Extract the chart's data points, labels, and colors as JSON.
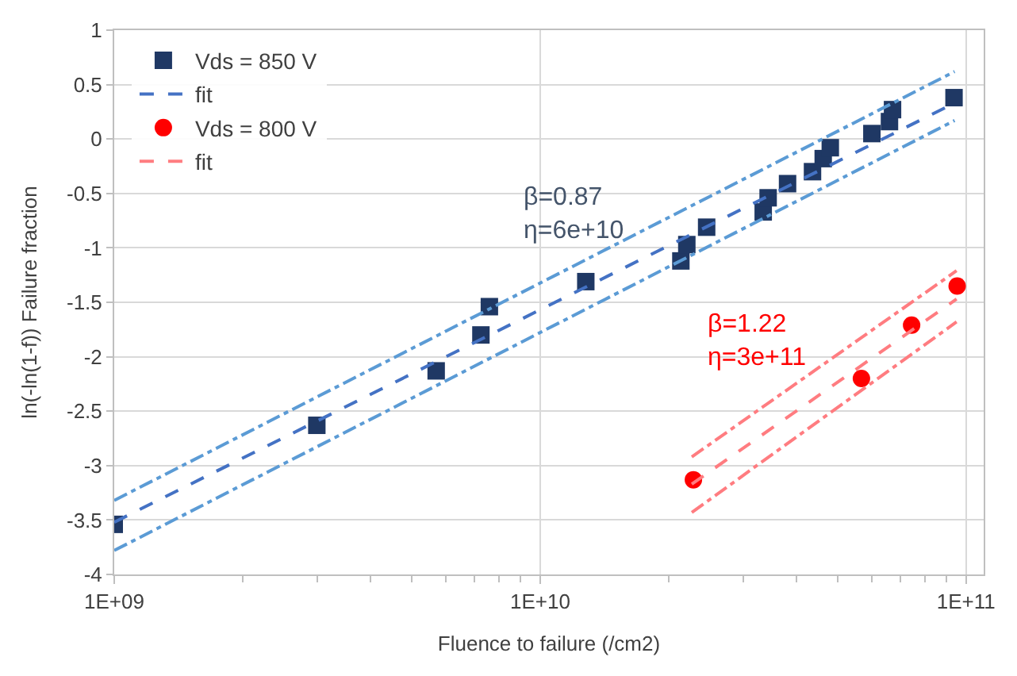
{
  "chart_data": {
    "type": "scatter",
    "xlabel": "Fluence to failure (/cm2)",
    "ylabel": "ln(-ln(1-f)) Failure fraction",
    "log": "x",
    "grid": true,
    "legend": "top left",
    "xlim": [
      1000000000.0,
      110000000000.0
    ],
    "xticks": [
      {
        "value": 1000000000.0,
        "label": "1E+09"
      },
      {
        "value": 10000000000.0,
        "label": "1E+10"
      },
      {
        "value": 100000000000.0,
        "label": "1E+11"
      }
    ],
    "ylim": [
      -4,
      1
    ],
    "yticks": [
      -4,
      -3.5,
      -3,
      -2.5,
      -2,
      -1.5,
      -1,
      -0.5,
      0,
      0.5,
      1
    ],
    "series": [
      {
        "name": "Vds = 850 V",
        "marker": "square",
        "color": "#1f3864",
        "x": [
          1000000000.0,
          2990000000.0,
          5700000000.0,
          7260000000.0,
          7600000000.0,
          12800000000.0,
          21400000000.0,
          22100000000.0,
          24600000000.0,
          33400000000.0,
          34300000000.0,
          38100000000.0,
          43600000000.0,
          46200000000.0,
          48000000000.0,
          60100000000.0,
          66100000000.0,
          67200000000.0,
          93700000000.0
        ],
        "values": [
          -3.54,
          -2.63,
          -2.13,
          -1.8,
          -1.54,
          -1.31,
          -1.12,
          -0.97,
          -0.81,
          -0.67,
          -0.54,
          -0.41,
          -0.3,
          -0.18,
          -0.08,
          0.05,
          0.16,
          0.27,
          0.38
        ]
      },
      {
        "name": "fit",
        "type": "line",
        "line_style": "dashed",
        "color": "#4472c4",
        "x": [
          1000000000.0,
          94000000000.0
        ],
        "values": [
          -3.52,
          0.33
        ]
      },
      {
        "type": "line",
        "line_style": "dashdot",
        "color": "#5b9bd5",
        "x": [
          1000000000.0,
          94000000000.0
        ],
        "values": [
          -3.32,
          0.62
        ]
      },
      {
        "type": "line",
        "line_style": "dashdot",
        "color": "#5b9bd5",
        "x": [
          1000000000.0,
          94000000000.0
        ],
        "values": [
          -3.78,
          0.17
        ]
      },
      {
        "name": "Vds = 800 V",
        "marker": "circle",
        "color": "#ff0000",
        "x": [
          22900000000.0,
          56800000000.0,
          74500000000.0,
          95300000000.0
        ],
        "values": [
          -3.13,
          -2.2,
          -1.71,
          -1.35
        ]
      },
      {
        "name": "fit",
        "type": "line",
        "line_style": "dashed",
        "color": "#ff7c80",
        "x": [
          22700000000.0,
          95000000000.0
        ],
        "values": [
          -3.17,
          -1.47
        ]
      },
      {
        "type": "line",
        "line_style": "dashdot",
        "color": "#ff7c80",
        "x": [
          22700000000.0,
          95000000000.0
        ],
        "values": [
          -2.92,
          -1.21
        ]
      },
      {
        "type": "line",
        "line_style": "dashdot",
        "color": "#ff7c80",
        "x": [
          22700000000.0,
          95000000000.0
        ],
        "values": [
          -3.43,
          -1.68
        ]
      }
    ],
    "annotations": [
      "β=0.87\nη=6e+10",
      "β=1.22\nη=3e+11"
    ]
  }
}
